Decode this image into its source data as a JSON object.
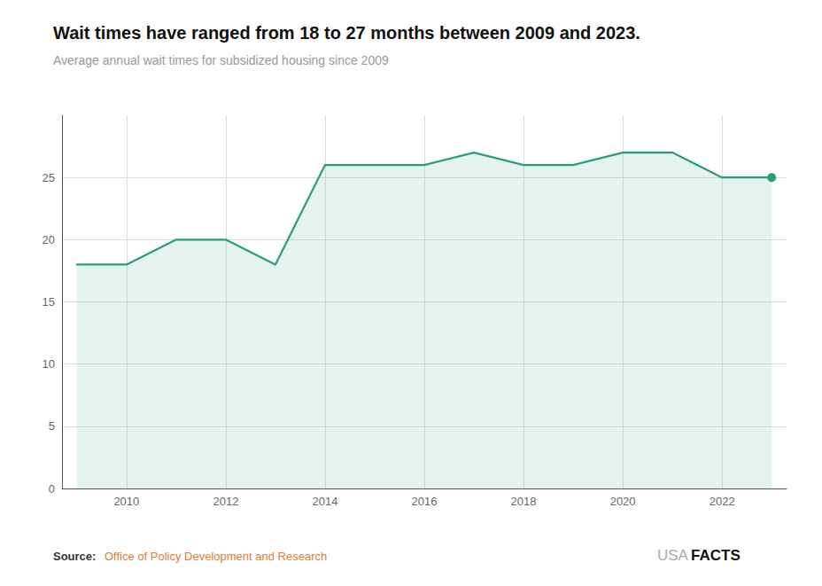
{
  "chart_data": {
    "type": "line",
    "title": "Wait times have ranged from 18 to 27 months between 2009 and 2023.",
    "subtitle": "Average annual wait times for subsidized housing since 2009",
    "x": [
      2009,
      2010,
      2011,
      2012,
      2013,
      2014,
      2015,
      2016,
      2017,
      2018,
      2019,
      2020,
      2021,
      2022,
      2023
    ],
    "values": [
      18,
      18,
      20,
      20,
      18,
      26,
      26,
      26,
      27,
      26,
      26,
      27,
      27,
      25,
      25
    ],
    "color": "#2a9d78",
    "xlim": [
      2008.7,
      2023.3
    ],
    "xticks": [
      2010,
      2012,
      2014,
      2016,
      2018,
      2020,
      2022
    ],
    "ylim": [
      0,
      30
    ],
    "yticks": [
      0,
      5,
      10,
      15,
      20,
      25
    ],
    "grid": true,
    "annotations": [
      {
        "text": "Source:"
      },
      {
        "text": "Office of Policy Development and Research",
        "color": "#e07b39"
      },
      {
        "text": "USA"
      },
      {
        "text": "FACTS"
      }
    ]
  }
}
